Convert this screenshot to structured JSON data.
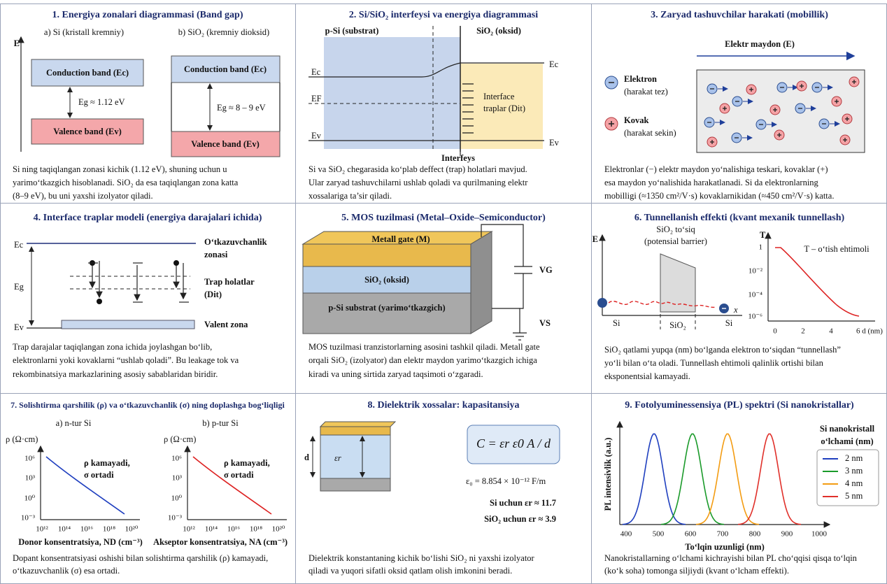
{
  "panels": [
    {
      "title": "1. Energiya zonalari diagrammasi (Band gap)",
      "axis": "E",
      "left_label": "a) Si (kristall kremniy)",
      "right_label": "b) SiO₂ (kremniy dioksid)",
      "conduction": "Conduction band (Ec)",
      "valence": "Valence band (Ev)",
      "si_gap": "Eg ≈ 1.12 eV",
      "sio2_gap": "Eg ≈ 8 – 9 eV",
      "caption": [
        "Si ning taqiqlangan zonasi kichik (1.12 eV), shuning uchun u",
        "yarimo‘tkazgich hisoblanadi. SiO₂ da esa taqiqlangan zona katta",
        "(8–9 eV), bu uni yaxshi izolyator qiladi."
      ]
    },
    {
      "title": "2. Si/SiO₂ interfeysi va energiya diagrammasi",
      "left_label": "p-Si (substrat)",
      "right_label": "SiO₂ (oksid)",
      "ec": "Ec",
      "ef": "EF",
      "ev": "Ev",
      "traps": [
        "Interface",
        "traplar (Dit)"
      ],
      "interface": "Interfeys",
      "caption": [
        "Si va SiO₂ chegarasida ko‘plab deffect (trap) holatlari mavjud.",
        "Ular zaryad tashuvchilarni ushlab qoladi va qurilmaning elektr",
        "xossalariga ta’sir qiladi."
      ]
    },
    {
      "title": "3. Zaryad tashuvchilar harakati (mobillik)",
      "field": "Elektr maydon (E)",
      "electron": [
        "Elektron",
        "(harakat tez)"
      ],
      "hole": [
        "Kovak",
        "(harakat sekin)"
      ],
      "caption": [
        "Elektronlar (−) elektr maydon yo‘nalishiga teskari, kovaklar (+)",
        "esa maydon yo‘nalishida harakatlanadi. Si da elektronlarning",
        "mobilligi (≈1350 cm²/V·s) kovaklarnikidan (≈450 cm²/V·s) katta."
      ]
    },
    {
      "title": "4. Interface traplar modeli (energiya darajalari ichida)",
      "ec": "Ec",
      "eg": "Eg",
      "ev": "Ev",
      "conduction": [
        "O‘tkazuvchanlik",
        "zonasi"
      ],
      "traps": [
        "Trap holatlar",
        "(Dit)"
      ],
      "valence": "Valent zona",
      "caption": [
        "Trap darajalar taqiqlangan zona ichida joylashgan bo‘lib,",
        "elektronlarni yoki kovaklarni “ushlab qoladi”. Bu leakage tok va",
        "rekombinatsiya markazlarining asosiy sabablaridan biridir."
      ]
    },
    {
      "title": "5. MOS tuzilmasi (Metal–Oxide–Semiconductor)",
      "gate": "Metall gate (M)",
      "oxide": "SiO₂ (oksid)",
      "substrate": "p-Si substrat (yarimo‘tkazgich)",
      "vg": "VG",
      "vs": "VS",
      "caption": [
        "MOS tuzilmasi tranzistorlarning asosini tashkil qiladi. Metall gate",
        "orqali SiO₂ (izolyator) dan elektr maydon yarimo‘tkazgich ichiga",
        "kiradi va uning sirtida zaryad taqsimoti o‘zgaradi."
      ]
    },
    {
      "title": "6. Tunnellanish effekti (kvant mexanik tunnellash)",
      "e_axis": "E",
      "barrier": [
        "SiO₂ to‘siq",
        "(potensial barrier)"
      ],
      "x_axis": "x",
      "regions": [
        "Si",
        "SiO₂",
        "Si"
      ],
      "t_axis": "T",
      "t_label": "T – o‘tish ehtimoli",
      "yticks": [
        "1",
        "10⁻²",
        "10⁻⁴",
        "10⁻⁶"
      ],
      "xticks": [
        "0",
        "2",
        "4",
        "6 d (nm)"
      ],
      "caption": [
        "SiO₂ qatlami yupqa (nm) bo‘lganda elektron to‘siqdan “tunnellash”",
        "yo‘li bilan o‘ta oladi. Tunnellash ehtimoli qalinlik ortishi bilan",
        "eksponentsial kamayadi."
      ]
    },
    {
      "title": "7. Solishtirma qarshilik (ρ) va o‘tkazuvchanlik (σ) ning doplashga bog‘liqligi",
      "left_label": "a) n-tur Si",
      "right_label": "b) p-tur Si",
      "y_axis": "ρ (Ω·cm)",
      "yticks": [
        "10⁶",
        "10³",
        "10⁰",
        "10⁻³"
      ],
      "xticks": [
        "10¹²",
        "10¹⁴",
        "10¹⁶",
        "10¹⁸",
        "10²⁰"
      ],
      "note": [
        "ρ kamayadi,",
        "σ ortadi"
      ],
      "left_x": "Donor konsentratsiya, ND (cm⁻³)",
      "right_x": "Akseptor konsentratsiya, NA (cm⁻³)",
      "caption": [
        "Dopant konsentratsiyasi oshishi bilan solishtirma qarshilik (ρ) kamayadi,",
        "o‘tkazuvchanlik (σ) esa ortadi."
      ]
    },
    {
      "title": "8. Dielektrik xossalar: kapasitansiya",
      "d": "d",
      "er": "εr",
      "formula": "C = εr ε0 A / d",
      "e0": "ε₀ = 8.854 × 10⁻¹² F/m",
      "si": "Si uchun  εr ≈ 11.7",
      "sio2": "SiO₂ uchun  εr ≈ 3.9",
      "caption": [
        "Dielektrik konstantaning kichik bo‘lishi SiO₂ ni yaxshi izolyator",
        "qiladi va yuqori sifatli oksid qatlam olish imkonini beradi."
      ]
    },
    {
      "title": "9. Fotolyuminessensiya (PL) spektri (Si nanokristallar)",
      "y_axis": "PL intensivlik (a.u.)",
      "legend_title": [
        "Si nanokristall",
        "o‘lchami (nm)"
      ],
      "legend": [
        "2 nm",
        "3 nm",
        "4 nm",
        "5 nm"
      ],
      "xticks": [
        "400",
        "500",
        "600",
        "700",
        "800",
        "900",
        "1000"
      ],
      "x_axis": "To‘lqin uzunligi (nm)",
      "caption": [
        "Nanokristallarning o‘lchami kichrayishi bilan PL cho‘qqisi qisqa to‘lqin",
        "(ko‘k soha) tomonga siljiydi (kvant o‘lcham effekti)."
      ]
    }
  ]
}
